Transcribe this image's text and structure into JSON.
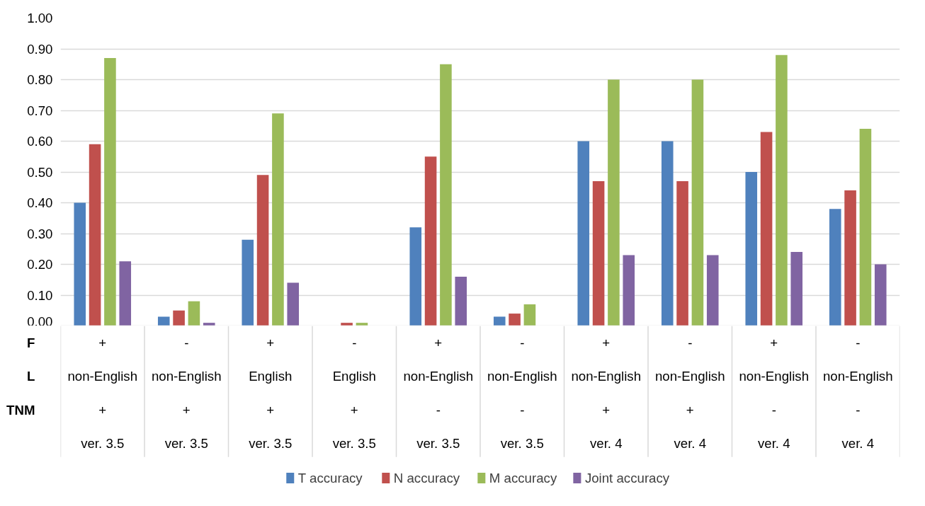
{
  "chart_data": {
    "type": "bar",
    "categories": [
      "+\nnon-English\n+\nver. 3.5",
      "-\nnon-English\n+\nver. 3.5",
      "+\nEnglish\n+\nver. 3.5",
      "-\nEnglish\n+\nver. 3.5",
      "+\nnon-English\n-\nver. 3.5",
      "-\nnon-English\n-\nver. 3.5",
      "+\nnon-English\n+\nver. 4",
      "-\nnon-English\n+\nver. 4",
      "+\nnon-English\n-\nver. 4",
      "-\nnon-English\n-\nver. 4"
    ],
    "annotations": [
      "F",
      "L",
      "TNM"
    ],
    "series": [
      {
        "name": "T accuracy",
        "color": "#4f81bd",
        "values": [
          0.4,
          0.03,
          0.28,
          0.0,
          0.32,
          0.03,
          0.6,
          0.6,
          0.5,
          0.38
        ]
      },
      {
        "name": "N accuracy",
        "color": "#c0504d",
        "values": [
          0.59,
          0.05,
          0.49,
          0.01,
          0.55,
          0.04,
          0.47,
          0.47,
          0.63,
          0.44
        ]
      },
      {
        "name": "M accuracy",
        "color": "#9bbb59",
        "values": [
          0.87,
          0.08,
          0.69,
          0.01,
          0.85,
          0.07,
          0.8,
          0.8,
          0.88,
          0.64
        ]
      },
      {
        "name": "Joint accuracy",
        "color": "#8064a2",
        "values": [
          0.21,
          0.01,
          0.14,
          0.0,
          0.16,
          0.0,
          0.23,
          0.23,
          0.24,
          0.2
        ]
      }
    ],
    "ylim": [
      0,
      1
    ],
    "yticks": [
      {
        "value": 0,
        "label": "0.00"
      },
      {
        "value": 0.1,
        "label": "0.10"
      },
      {
        "value": 0.2,
        "label": "0.20"
      },
      {
        "value": 0.3,
        "label": "0.30"
      },
      {
        "value": 0.4,
        "label": "0.40"
      },
      {
        "value": 0.5,
        "label": "0.50"
      },
      {
        "value": 0.6,
        "label": "0.60"
      },
      {
        "value": 0.7,
        "label": "0.70"
      },
      {
        "value": 0.8,
        "label": "0.80"
      },
      {
        "value": 0.9,
        "label": "0.90"
      },
      {
        "value": 1,
        "label": "1.00"
      }
    ],
    "grid": "y",
    "legend": "bottom"
  }
}
